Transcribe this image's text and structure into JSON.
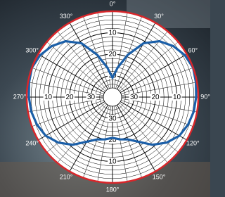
{
  "chart_data": {
    "type": "polar",
    "theta": [
      0,
      10,
      20,
      30,
      40,
      50,
      60,
      70,
      80,
      90,
      100,
      110,
      120,
      130,
      140,
      150,
      160,
      170,
      180,
      190,
      200,
      210,
      220,
      230,
      240,
      250,
      260,
      270,
      280,
      290,
      300,
      310,
      320,
      330,
      340,
      350
    ],
    "series": [
      {
        "color": "#1b5fa8",
        "values": [
          -31,
          -26,
          -19,
          -11,
          -6,
          -3,
          -1,
          0,
          -0.5,
          -1,
          -1.5,
          -2.5,
          -4,
          -7,
          -11,
          -16,
          -19,
          -20,
          -21,
          -20,
          -19,
          -16,
          -11,
          -7,
          -4,
          -2.5,
          -1.5,
          -1,
          -0.5,
          0,
          -1,
          -3,
          -6,
          -11,
          -19,
          -26
        ]
      }
    ],
    "rlim": [
      -40,
      0
    ],
    "rticks": [
      {
        "value": -10,
        "label": "10"
      },
      {
        "value": -20,
        "label": "20"
      },
      {
        "value": -30,
        "label": "30"
      }
    ],
    "thetaticks": [
      {
        "value": 0,
        "label": "0°"
      },
      {
        "value": 30,
        "label": "30°"
      },
      {
        "value": 60,
        "label": "60°"
      },
      {
        "value": 90,
        "label": "90°"
      },
      {
        "value": 120,
        "label": "120°"
      },
      {
        "value": 150,
        "label": "150°"
      },
      {
        "value": 180,
        "label": "180°"
      },
      {
        "value": 210,
        "label": "210°"
      },
      {
        "value": 240,
        "label": "240°"
      },
      {
        "value": 270,
        "label": "270°"
      },
      {
        "value": 300,
        "label": "300°"
      },
      {
        "value": 330,
        "label": "330°"
      }
    ],
    "rim_color": "#d8262a",
    "grid": true
  }
}
